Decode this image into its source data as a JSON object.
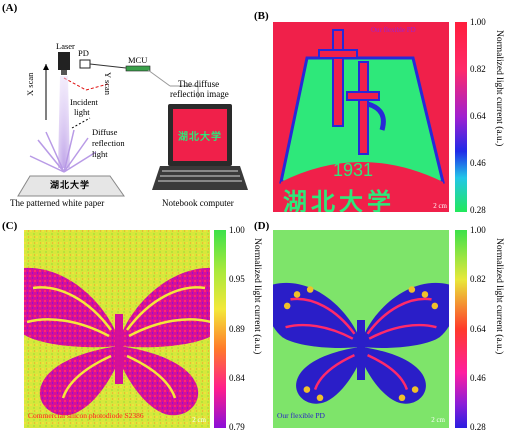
{
  "panels": {
    "A": {
      "label": "(A)",
      "laser": "Laser",
      "pd": "PD",
      "mcu": "MCU",
      "x_scan": "X scan",
      "y_scan": "Y scan",
      "incident": [
        "Incident",
        "light"
      ],
      "diffuse": [
        "Diffuse",
        "reflection",
        "light"
      ],
      "paper_text": "湖北大学",
      "paper_caption": "The patterned white paper",
      "image_caption": [
        "The diffuse",
        "reflection image"
      ],
      "screen_text": "湖北大学",
      "notebook_caption": "Notebook computer"
    },
    "B": {
      "label": "(B)",
      "inset": "Our flexible PD",
      "year": "1931",
      "name": "湖北大学",
      "scalebar": "2 cm",
      "colorbar": {
        "title": "Normalized light current (a.u.)",
        "ticks": [
          "1.00",
          "0.82",
          "0.64",
          "0.46",
          "0.28"
        ]
      }
    },
    "C": {
      "label": "(C)",
      "inset": "Commercial silicon photodiode S2386",
      "scalebar": "2 cm",
      "colorbar": {
        "title": "Normalized light current (a.u.)",
        "ticks": [
          "1.00",
          "0.95",
          "0.89",
          "0.84",
          "0.79"
        ]
      }
    },
    "D": {
      "label": "(D)",
      "inset": "Our flexible PD",
      "scalebar": "2 cm",
      "colorbar": {
        "title": "Normalized light current (a.u.)",
        "ticks": [
          "1.00",
          "0.82",
          "0.64",
          "0.46",
          "0.28"
        ]
      }
    }
  },
  "colors": {
    "bg_red": "#f0204a",
    "shape_green": "#2ee87a",
    "outline_blue": "#2828d8",
    "c_bg_yellow": "#d8ea3a",
    "c_fly_magenta": "#d4109a",
    "d_bg_green": "#7ee46a",
    "d_fly_blue": "#2a1ec8"
  }
}
